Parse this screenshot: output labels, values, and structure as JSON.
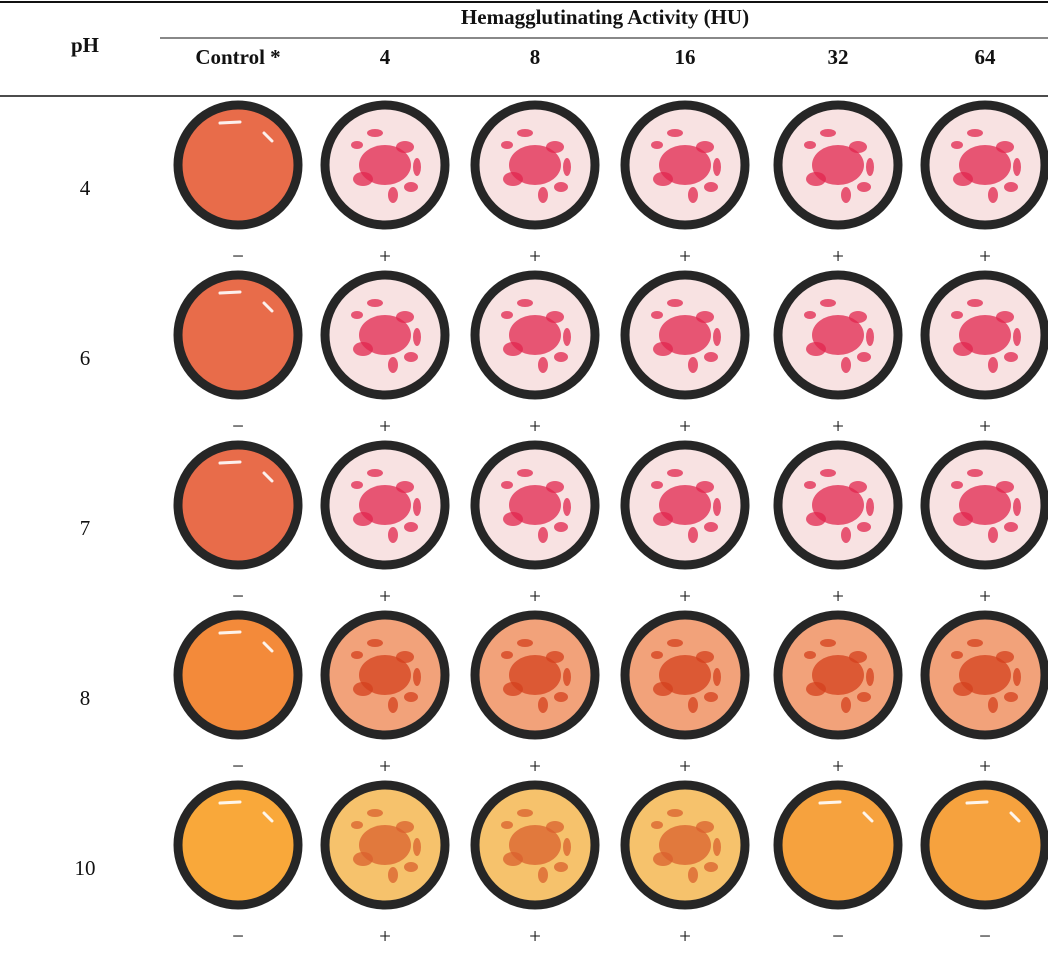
{
  "header": {
    "row_label": "pH",
    "group_label": "Hemagglutinating Activity (HU)",
    "columns": [
      "Control *",
      "4",
      "8",
      "16",
      "32",
      "64"
    ]
  },
  "rows": [
    {
      "ph": "4",
      "results": [
        "−",
        "+",
        "+",
        "+",
        "+",
        "+"
      ]
    },
    {
      "ph": "6",
      "results": [
        "−",
        "+",
        "+",
        "+",
        "+",
        "+"
      ]
    },
    {
      "ph": "7",
      "results": [
        "−",
        "+",
        "+",
        "+",
        "+",
        "+"
      ]
    },
    {
      "ph": "8",
      "results": [
        "−",
        "+",
        "+",
        "+",
        "+",
        "+"
      ]
    },
    {
      "ph": "10",
      "results": [
        "−",
        "+",
        "+",
        "+",
        "−",
        "−"
      ]
    }
  ]
}
